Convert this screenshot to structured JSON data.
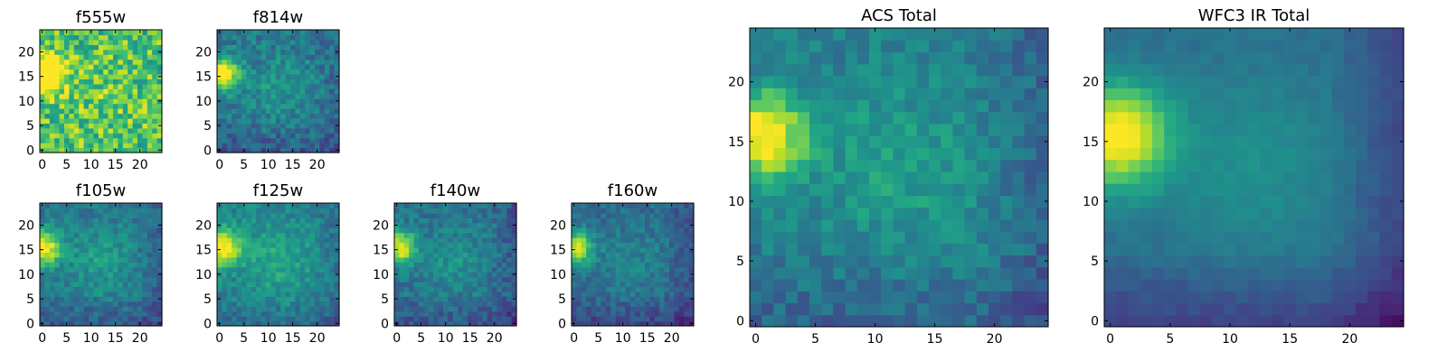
{
  "figure": {
    "colormap": "viridis",
    "panels": [
      {
        "title": "f555w",
        "xticks": [
          "0",
          "5",
          "10",
          "15",
          "20"
        ],
        "yticks": [
          "0",
          "5",
          "10",
          "15",
          "20"
        ],
        "field": {
          "peak_x": 0.5,
          "peak_y": 15.5,
          "peak_amp": 1.0,
          "peak_sigma": 2.4,
          "base": 0.72,
          "blob_amp": 0.05,
          "blob_x": 12,
          "blob_y": 12,
          "blob_sigma": 6,
          "bottom_drop": 0.0,
          "right_drop": 0.0,
          "noise": 0.22,
          "seed": 11
        }
      },
      {
        "title": "f814w",
        "xticks": [
          "0",
          "5",
          "10",
          "15",
          "20"
        ],
        "yticks": [
          "0",
          "5",
          "10",
          "15",
          "20"
        ],
        "field": {
          "peak_x": 0.5,
          "peak_y": 15.5,
          "peak_amp": 0.7,
          "peak_sigma": 2.3,
          "base": 0.4,
          "blob_amp": 0.12,
          "blob_x": 12,
          "blob_y": 13,
          "blob_sigma": 5,
          "bottom_drop": 0.12,
          "right_drop": 0.05,
          "noise": 0.12,
          "seed": 23
        }
      },
      {
        "title": "f105w",
        "xticks": [
          "0",
          "5",
          "10",
          "15",
          "20"
        ],
        "yticks": [
          "0",
          "5",
          "10",
          "15",
          "20"
        ],
        "field": {
          "peak_x": 0.5,
          "peak_y": 15.5,
          "peak_amp": 0.6,
          "peak_sigma": 2.5,
          "base": 0.4,
          "blob_amp": 0.15,
          "blob_x": 12,
          "blob_y": 13,
          "blob_sigma": 5,
          "bottom_drop": 0.12,
          "right_drop": 0.08,
          "noise": 0.1,
          "seed": 37
        }
      },
      {
        "title": "f125w",
        "xticks": [
          "0",
          "5",
          "10",
          "15",
          "20"
        ],
        "yticks": [
          "0",
          "5",
          "10",
          "15",
          "20"
        ],
        "field": {
          "peak_x": 0.5,
          "peak_y": 15.5,
          "peak_amp": 0.6,
          "peak_sigma": 2.6,
          "base": 0.45,
          "blob_amp": 0.15,
          "blob_x": 12,
          "blob_y": 13,
          "blob_sigma": 5,
          "bottom_drop": 0.1,
          "right_drop": 0.08,
          "noise": 0.1,
          "seed": 41
        }
      },
      {
        "title": "f140w",
        "xticks": [
          "0",
          "5",
          "10",
          "15",
          "20"
        ],
        "yticks": [
          "0",
          "5",
          "10",
          "15",
          "20"
        ],
        "field": {
          "peak_x": 0.5,
          "peak_y": 15.5,
          "peak_amp": 0.6,
          "peak_sigma": 2.4,
          "base": 0.38,
          "blob_amp": 0.12,
          "blob_x": 12,
          "blob_y": 13,
          "blob_sigma": 5,
          "bottom_drop": 0.12,
          "right_drop": 0.1,
          "noise": 0.1,
          "seed": 53
        }
      },
      {
        "title": "f160w",
        "xticks": [
          "0",
          "5",
          "10",
          "15",
          "20"
        ],
        "yticks": [
          "0",
          "5",
          "10",
          "15",
          "20"
        ],
        "field": {
          "peak_x": 0.5,
          "peak_y": 15.5,
          "peak_amp": 0.6,
          "peak_sigma": 2.3,
          "base": 0.35,
          "blob_amp": 0.1,
          "blob_x": 12,
          "blob_y": 13,
          "blob_sigma": 5,
          "bottom_drop": 0.14,
          "right_drop": 0.1,
          "noise": 0.09,
          "seed": 67
        }
      },
      {
        "title": "ACS Total",
        "xticks": [
          "0",
          "5",
          "10",
          "15",
          "20"
        ],
        "yticks": [
          "0",
          "5",
          "10",
          "15",
          "20"
        ],
        "field": {
          "peak_x": 0.5,
          "peak_y": 15.5,
          "peak_amp": 0.62,
          "peak_sigma": 2.6,
          "base": 0.42,
          "blob_amp": 0.15,
          "blob_x": 12,
          "blob_y": 13,
          "blob_sigma": 5,
          "bottom_drop": 0.1,
          "right_drop": 0.1,
          "noise": 0.09,
          "seed": 79
        }
      },
      {
        "title": "WFC3 IR Total",
        "xticks": [
          "0",
          "5",
          "10",
          "15",
          "20"
        ],
        "yticks": [
          "0",
          "5",
          "10",
          "15",
          "20"
        ],
        "field": {
          "peak_x": 0.5,
          "peak_y": 15.5,
          "peak_amp": 0.68,
          "peak_sigma": 3.0,
          "base": 0.36,
          "blob_amp": 0.14,
          "blob_x": 12,
          "blob_y": 13,
          "blob_sigma": 5.5,
          "bottom_drop": 0.16,
          "right_drop": 0.14,
          "noise": 0.03,
          "seed": 83
        }
      }
    ]
  },
  "chart_data": [
    {
      "type": "heatmap",
      "title": "f555w",
      "grid": [
        25,
        25
      ],
      "xlim": [
        0,
        24
      ],
      "ylim": [
        0,
        24
      ],
      "colormap": "viridis"
    },
    {
      "type": "heatmap",
      "title": "f814w",
      "grid": [
        25,
        25
      ],
      "xlim": [
        0,
        24
      ],
      "ylim": [
        0,
        24
      ],
      "colormap": "viridis"
    },
    {
      "type": "heatmap",
      "title": "f105w",
      "grid": [
        25,
        25
      ],
      "xlim": [
        0,
        24
      ],
      "ylim": [
        0,
        24
      ],
      "colormap": "viridis"
    },
    {
      "type": "heatmap",
      "title": "f125w",
      "grid": [
        25,
        25
      ],
      "xlim": [
        0,
        24
      ],
      "ylim": [
        0,
        24
      ],
      "colormap": "viridis"
    },
    {
      "type": "heatmap",
      "title": "f140w",
      "grid": [
        25,
        25
      ],
      "xlim": [
        0,
        24
      ],
      "ylim": [
        0,
        24
      ],
      "colormap": "viridis"
    },
    {
      "type": "heatmap",
      "title": "f160w",
      "grid": [
        25,
        25
      ],
      "xlim": [
        0,
        24
      ],
      "ylim": [
        0,
        24
      ],
      "colormap": "viridis"
    },
    {
      "type": "heatmap",
      "title": "ACS Total",
      "grid": [
        25,
        25
      ],
      "xlim": [
        0,
        24
      ],
      "ylim": [
        0,
        24
      ],
      "colormap": "viridis"
    },
    {
      "type": "heatmap",
      "title": "WFC3 IR Total",
      "grid": [
        25,
        25
      ],
      "xlim": [
        0,
        24
      ],
      "ylim": [
        0,
        24
      ],
      "colormap": "viridis"
    }
  ]
}
